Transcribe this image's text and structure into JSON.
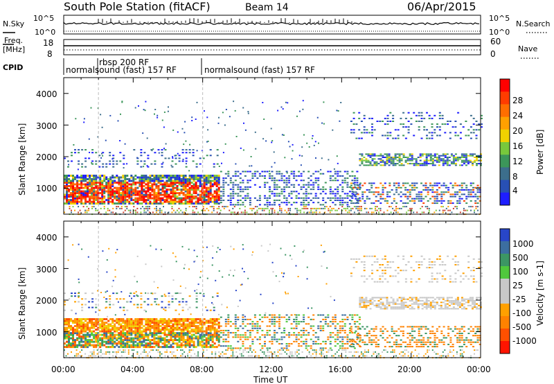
{
  "header": {
    "station": "South Pole Station (fitACF)",
    "beam": "Beam 14",
    "date": "06/Apr/2015"
  },
  "aux_panels": {
    "nsky_label": "N.Sky",
    "nsky_ticks": [
      "10^5",
      "10^0"
    ],
    "nsearch_label": "N.Search",
    "nsearch_ticks": [
      "10^5",
      "10^0"
    ],
    "freq_label_1": "Freq.",
    "freq_label_2": "[MHz]",
    "freq_ticks": [
      "18",
      "8"
    ],
    "nave_label": "Nave",
    "nave_ticks": [
      "60",
      "0"
    ],
    "cpid_label": "CPID",
    "cpid_segments": [
      {
        "text": "normalsound (fast) 157 RF",
        "start_hour": 0
      },
      {
        "text": "rbsp 200 RF",
        "start_hour": 2
      },
      {
        "text": "normalsound (fast) 157 RF",
        "start_hour": 8
      }
    ]
  },
  "chart_data": [
    {
      "type": "heatmap",
      "name": "power",
      "ylabel": "Slant Range [km]",
      "xlim_hours": [
        0,
        24
      ],
      "ylim_km": [
        180,
        4500
      ],
      "y_ticks": [
        "1000",
        "2000",
        "3000",
        "4000"
      ],
      "colorbar": {
        "label": "Power [dB]",
        "ticks": [
          "4",
          "8",
          "12",
          "16",
          "20",
          "24",
          "28"
        ],
        "colors": [
          "#1e1eff",
          "#2850b4",
          "#3c6e8c",
          "#3c965a",
          "#78c83c",
          "#f0d200",
          "#ffa000",
          "#ff6e00",
          "#ff3c00",
          "#ff0000"
        ]
      }
    },
    {
      "type": "heatmap",
      "name": "velocity",
      "ylabel": "Slant Range [km]",
      "xlim_hours": [
        0,
        24
      ],
      "ylim_km": [
        180,
        4500
      ],
      "y_ticks": [
        "1000",
        "2000",
        "3000",
        "4000"
      ],
      "colorbar": {
        "label": "Velocity [m s-1]",
        "ticks": [
          "1000",
          "500",
          "100",
          "25",
          "-25",
          "-100",
          "-500",
          "-1000"
        ],
        "colors": [
          "#2846c8",
          "#3c6ea0",
          "#3c9664",
          "#50c83c",
          "#c8c8c8",
          "#c8c8c8",
          "#ffa000",
          "#ff8200",
          "#ff5000",
          "#ff1400"
        ]
      },
      "x_ticks": [
        "00:00",
        "04:00",
        "08:00",
        "12:00",
        "16:00",
        "20:00",
        "00:00"
      ],
      "xlabel": "Time UT"
    }
  ],
  "colors": {
    "axis": "#000000",
    "dashed_marker": "#bbbbbb"
  }
}
